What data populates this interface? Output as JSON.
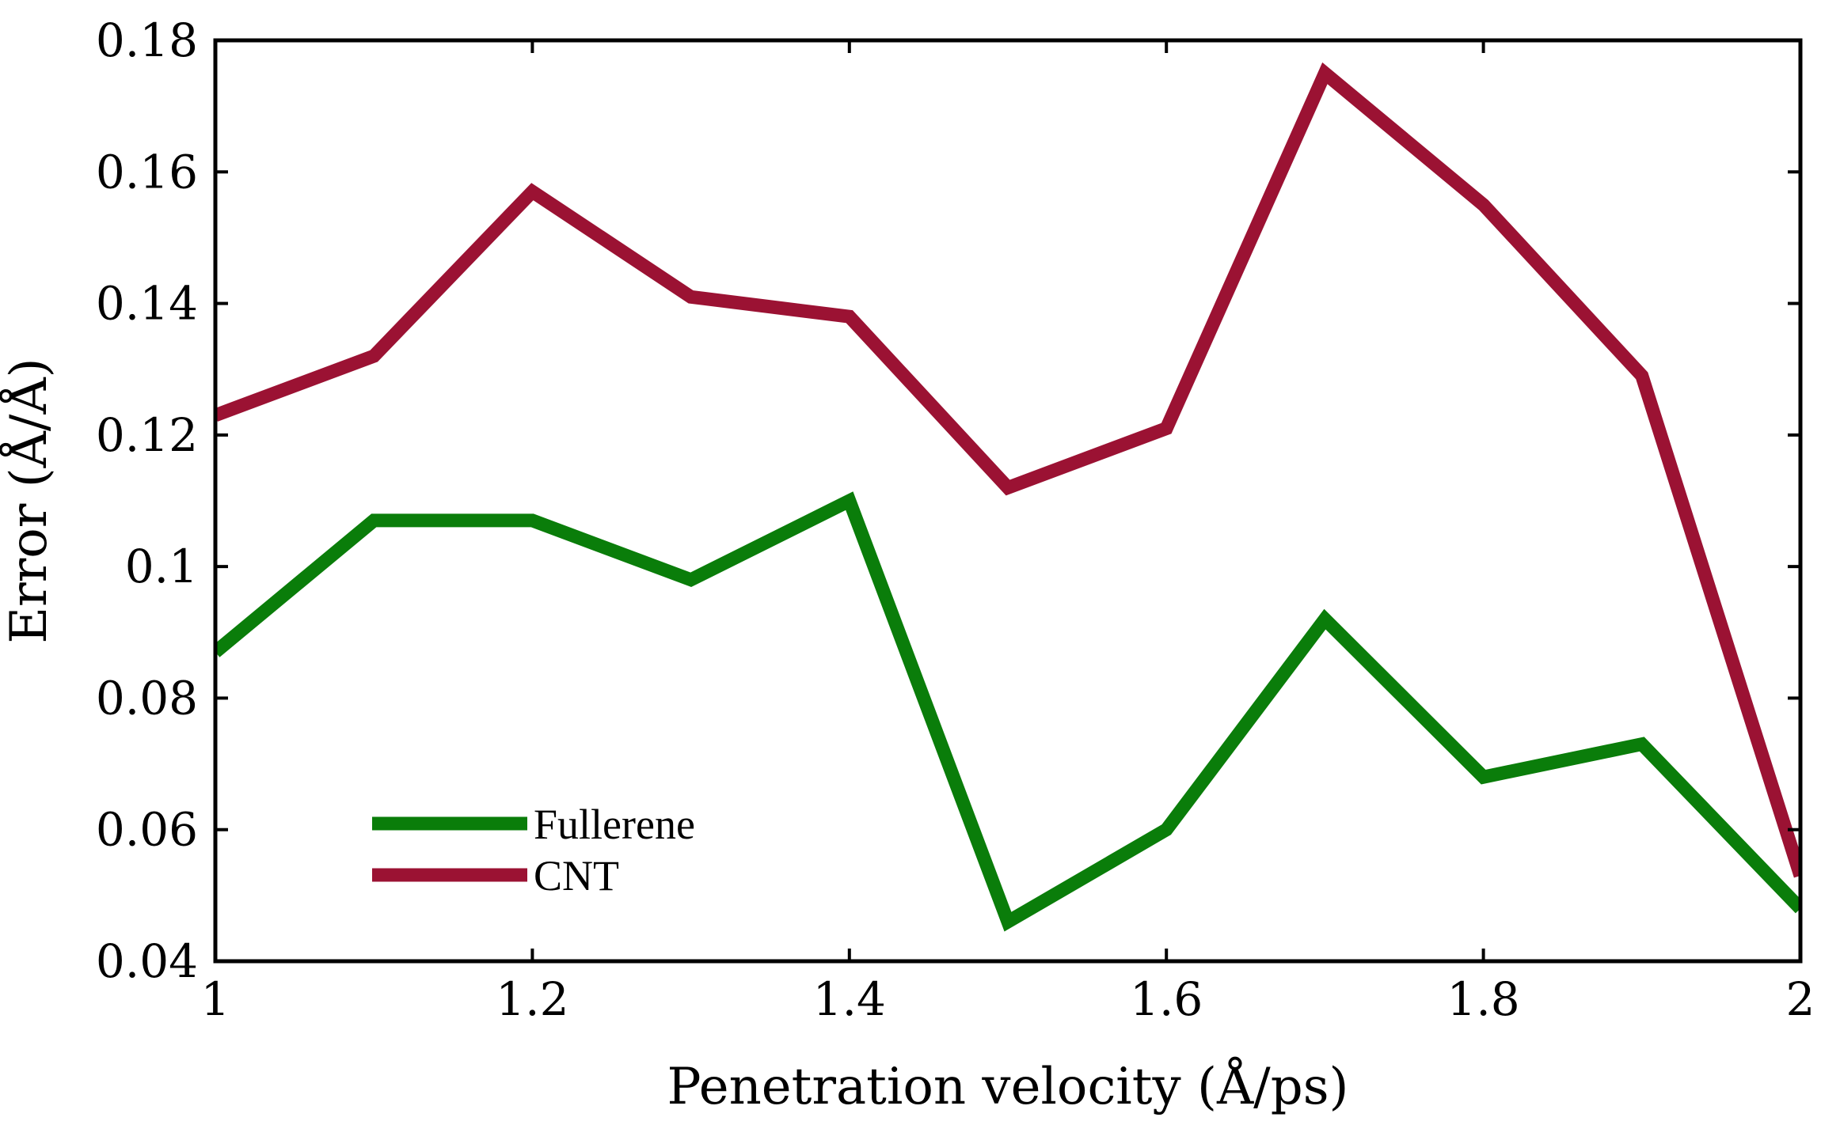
{
  "chart_data": {
    "type": "line",
    "xlabel": "Penetration velocity (Å/ps)",
    "ylabel": "Error (Å/Å)",
    "xlim": [
      1,
      2
    ],
    "ylim": [
      0.04,
      0.18
    ],
    "xticks": [
      1,
      1.2,
      1.4,
      1.6,
      1.8,
      2
    ],
    "xtick_labels": [
      "1",
      "1.2",
      "1.4",
      "1.6",
      "1.8",
      "2"
    ],
    "yticks": [
      0.04,
      0.06,
      0.08,
      0.1,
      0.12,
      0.14,
      0.16,
      0.18
    ],
    "ytick_labels": [
      "0.04",
      "0.06",
      "0.08",
      "0.1",
      "0.12",
      "0.14",
      "0.16",
      "0.18"
    ],
    "x": [
      1.0,
      1.1,
      1.2,
      1.3,
      1.4,
      1.5,
      1.6,
      1.7,
      1.8,
      1.9,
      2.0
    ],
    "series": [
      {
        "name": "Fullerene",
        "color": "#0a7d0a",
        "values": [
          0.087,
          0.107,
          0.107,
          0.098,
          0.11,
          0.046,
          0.06,
          0.092,
          0.068,
          0.073,
          0.048
        ]
      },
      {
        "name": "CNT",
        "color": "#9b1233",
        "values": [
          0.123,
          0.132,
          0.157,
          0.141,
          0.138,
          0.112,
          0.121,
          0.175,
          0.155,
          0.129,
          0.053
        ]
      }
    ],
    "legend_position": "bottom-left",
    "grid": false
  }
}
